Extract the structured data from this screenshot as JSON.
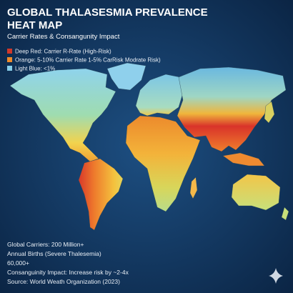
{
  "header": {
    "title_lines": [
      "GLOBAL THALASESMIA PREVALENCE",
      "HEAT MAP"
    ],
    "subtitle": "Carrier Rates & Consangunity Impact"
  },
  "legend": [
    {
      "label": "Deep Red:  Carrier R-Rate (High-Risk)",
      "color": "#d0382a"
    },
    {
      "label": "Orange:  5-10% Carrier Rate 1-5% CarRisk Modrate Risk)",
      "color": "#ef8a2a"
    },
    {
      "label": "Light Blue:  <1%",
      "color": "#86cde8"
    }
  ],
  "stats": [
    "Global Carriers: 200 Million+",
    "Annual Births (Severe Thalesemia)",
    "60,000+",
    "Consanguinity Impact: Increase risk by ~2-4x",
    "Source: World Weath Organization (2023)"
  ]
}
